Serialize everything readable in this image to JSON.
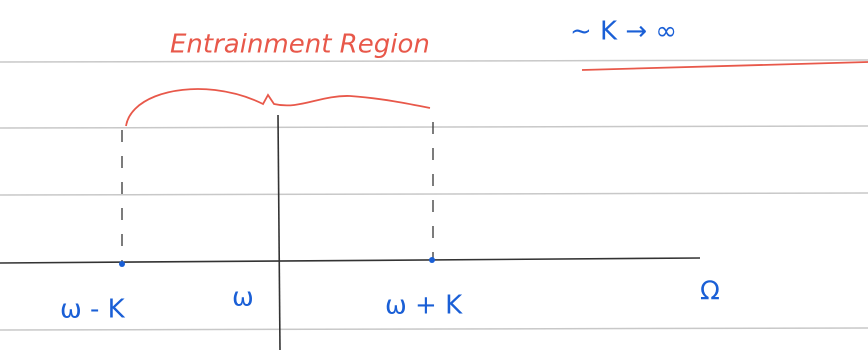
{
  "annotations": {
    "region": "Entrainment Region",
    "limit": "~ K → ∞"
  },
  "axis": {
    "labels": [
      "ω - K",
      "ω",
      "ω + K"
    ],
    "variable": "Ω"
  }
}
